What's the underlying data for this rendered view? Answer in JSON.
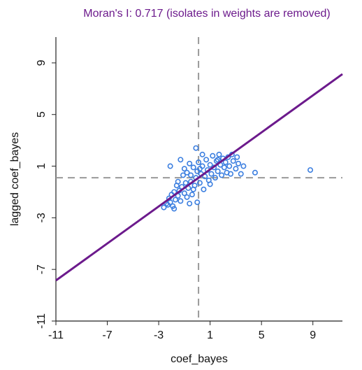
{
  "chart_data": {
    "type": "scatter",
    "title_prefix": "Moran's I: ",
    "morans_i": 0.717,
    "title_suffix": " (isolates in weights are removed)",
    "x_label": "coef_bayes",
    "y_label": "lagged coef_bayes",
    "x_mean": 0.1,
    "y_mean": 0.1,
    "color": "#3c7fe0",
    "line_color": "#6c1a8c",
    "xlim": [
      -11,
      11.3
    ],
    "ylim": [
      -11,
      11
    ],
    "xticks": [
      -11,
      -7,
      -3,
      1,
      5,
      9
    ],
    "yticks": [
      -11,
      -7,
      -3,
      1,
      5,
      9
    ],
    "x": [
      -2.6,
      -2.4,
      -2.3,
      -2.2,
      -2.1,
      -2.0,
      -1.9,
      -1.8,
      -1.7,
      -1.6,
      -1.5,
      -1.5,
      -1.4,
      -1.3,
      -1.2,
      -1.1,
      -1.0,
      -1.0,
      -0.9,
      -0.8,
      -0.8,
      -0.7,
      -0.6,
      -0.5,
      -0.5,
      -0.4,
      -0.3,
      -0.2,
      -0.1,
      0.0,
      0.0,
      0.1,
      0.2,
      0.3,
      0.4,
      0.5,
      0.6,
      0.7,
      0.8,
      0.9,
      1.0,
      1.1,
      1.2,
      1.3,
      1.4,
      1.5,
      1.6,
      1.7,
      1.8,
      1.9,
      2.0,
      2.1,
      2.2,
      2.3,
      2.4,
      2.5,
      2.6,
      2.8,
      3.0,
      3.2,
      3.4,
      3.6,
      4.5,
      8.8,
      -2.1,
      -0.1,
      -1.3,
      0.4,
      1.0,
      -0.6,
      -1.8,
      2.7,
      3.1,
      0.2,
      -0.3,
      1.6
    ],
    "values": [
      -2.2,
      -1.9,
      -2.0,
      -1.5,
      -1.8,
      -1.2,
      -2.1,
      -1.0,
      -1.6,
      -0.5,
      -1.3,
      -0.2,
      -0.9,
      -1.7,
      -0.6,
      0.3,
      -1.1,
      0.8,
      -0.3,
      -1.4,
      0.5,
      -0.7,
      1.2,
      -0.2,
      0.3,
      -1.2,
      0.9,
      -0.5,
      0.1,
      -1.8,
      0.6,
      1.3,
      -0.3,
      0.4,
      1.0,
      -0.8,
      0.2,
      1.5,
      0.7,
      -0.1,
      1.1,
      0.4,
      1.8,
      0.9,
      0.1,
      1.4,
      0.6,
      1.9,
      1.1,
      0.3,
      1.6,
      0.9,
      1.3,
      0.5,
      1.7,
      1.0,
      0.4,
      1.4,
      0.8,
      1.2,
      0.4,
      1.0,
      0.5,
      0.7,
      1.0,
      2.4,
      1.5,
      1.9,
      -0.4,
      -1.9,
      -2.3,
      1.9,
      1.7,
      0.8,
      -0.8,
      1.5
    ]
  }
}
